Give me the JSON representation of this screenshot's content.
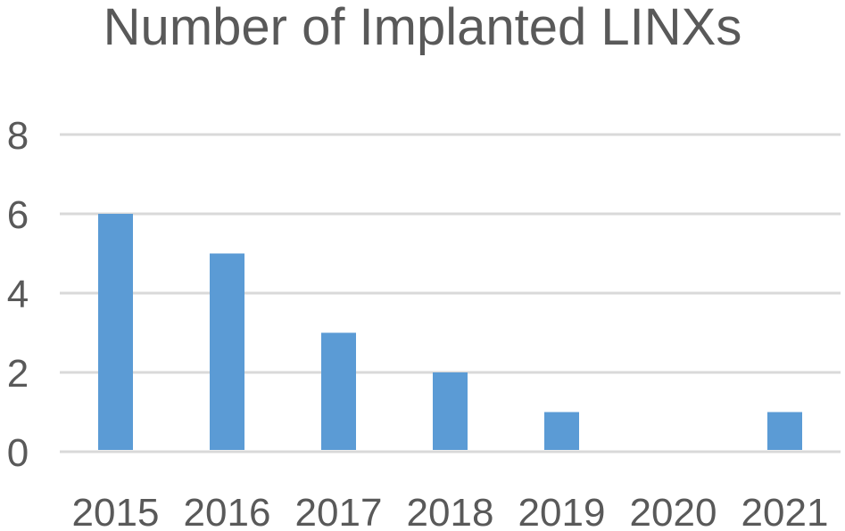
{
  "chart_data": {
    "type": "bar",
    "title": "Number of Implanted LINXs",
    "categories": [
      "2015",
      "2016",
      "2017",
      "2018",
      "2019",
      "2020",
      "2021"
    ],
    "values": [
      6,
      5,
      3,
      2,
      1,
      0,
      1
    ],
    "ylim": [
      0,
      8
    ],
    "yticks": [
      0,
      2,
      4,
      6,
      8
    ],
    "grid": true,
    "bar_color": "#5B9BD5",
    "grid_color": "#D9D9D9",
    "text_color": "#595959"
  }
}
